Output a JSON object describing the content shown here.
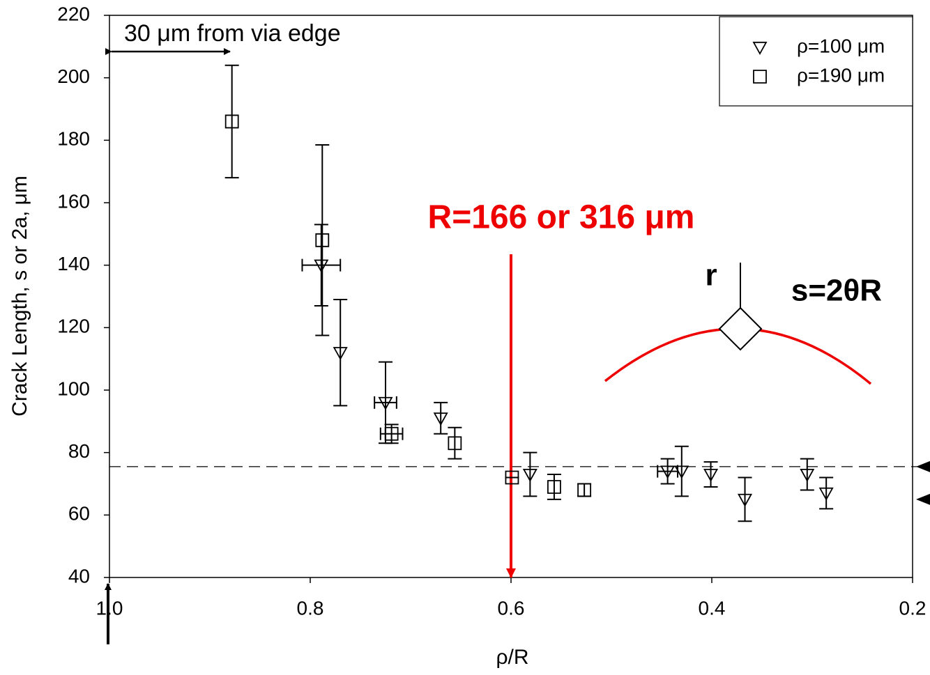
{
  "chart_data": {
    "type": "scatter",
    "x_label": "ρ/R",
    "y_label": "Crack Length, s or 2a, μm",
    "xlim": [
      1.0,
      0.2
    ],
    "ylim": [
      40,
      220
    ],
    "xticks": [
      {
        "value": 1.0,
        "label": "1.0"
      },
      0.8,
      0.6,
      0.4,
      0.2
    ],
    "yticks": [
      40,
      60,
      80,
      100,
      120,
      140,
      160,
      180,
      200,
      220
    ],
    "legend": "top-right",
    "series": [
      {
        "name": "ρ=100 μm",
        "marker": "triangle-down",
        "color": "#000000",
        "x": [
          0.789,
          0.77,
          0.725,
          0.67,
          0.581,
          0.444,
          0.43,
          0.401,
          0.367,
          0.305,
          0.286
        ],
        "values": [
          140,
          112,
          96,
          91,
          73,
          74,
          74,
          73,
          65,
          73,
          67
        ],
        "yerr": [
          13,
          17,
          13,
          5,
          7,
          4,
          8,
          4,
          7,
          5,
          5
        ],
        "xerr": [
          0.019,
          0,
          0.011,
          0,
          0,
          0.01,
          0,
          0,
          0,
          0,
          0
        ]
      },
      {
        "name": "ρ=190 μm",
        "marker": "square",
        "color": "#000000",
        "x": [
          0.878,
          0.788,
          0.719,
          0.656,
          0.599,
          0.557,
          0.527
        ],
        "values": [
          186,
          148,
          86,
          83,
          72,
          69,
          68
        ],
        "yerr": [
          18,
          30.5,
          3,
          5,
          0,
          4,
          2
        ],
        "xerr": [
          0,
          0,
          0.011,
          0,
          0,
          0,
          0
        ]
      }
    ],
    "hline": 75.5,
    "right_markers": [
      75.5,
      65
    ],
    "vline_x": 0.6,
    "annotations": [
      "30 μm from via edge",
      "R=166 or 316 μm",
      "r",
      "s=2θR"
    ]
  }
}
